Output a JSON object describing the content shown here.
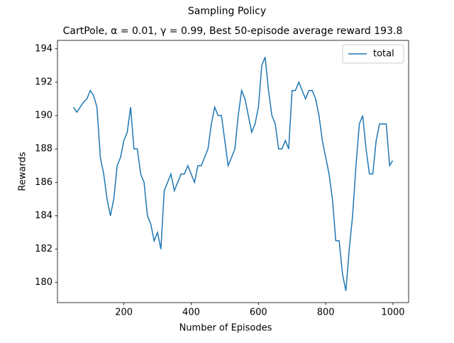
{
  "chart_data": {
    "type": "line",
    "suptitle": "Sampling Policy",
    "title": "CartPole, α = 0.01, γ = 0.99, Best 50-episode average reward 193.8",
    "x_label": "Number of Episodes",
    "y_label": "Rewards",
    "x": [
      50,
      60,
      70,
      80,
      90,
      100,
      110,
      120,
      130,
      140,
      150,
      160,
      170,
      180,
      190,
      200,
      210,
      220,
      230,
      240,
      250,
      260,
      270,
      280,
      290,
      300,
      310,
      320,
      330,
      340,
      350,
      360,
      370,
      380,
      390,
      400,
      410,
      420,
      430,
      440,
      450,
      460,
      470,
      480,
      490,
      500,
      510,
      520,
      530,
      540,
      550,
      560,
      570,
      580,
      590,
      600,
      610,
      620,
      630,
      640,
      650,
      660,
      670,
      680,
      690,
      700,
      710,
      720,
      730,
      740,
      750,
      760,
      770,
      780,
      790,
      800,
      810,
      820,
      830,
      840,
      850,
      860,
      870,
      880,
      890,
      900,
      910,
      920,
      930,
      940,
      950,
      960,
      970,
      980,
      990,
      999
    ],
    "series": [
      {
        "name": "total",
        "color": "#1f77b4",
        "values": [
          190.5,
          190.2,
          190.5,
          190.8,
          191.0,
          191.5,
          191.2,
          190.5,
          187.5,
          186.5,
          185.0,
          184.0,
          185.0,
          187.0,
          187.5,
          188.5,
          189.0,
          190.5,
          188.0,
          188.0,
          186.5,
          186.0,
          184.0,
          183.5,
          182.5,
          183.0,
          182.0,
          185.5,
          186.0,
          186.5,
          185.5,
          186.0,
          186.5,
          186.5,
          187.0,
          186.5,
          186.0,
          187.0,
          187.0,
          187.5,
          188.0,
          189.5,
          190.5,
          190.0,
          190.0,
          188.5,
          187.0,
          187.5,
          188.0,
          190.0,
          191.5,
          191.0,
          190.0,
          189.0,
          189.5,
          190.5,
          193.0,
          193.5,
          191.5,
          190.0,
          189.5,
          188.0,
          188.0,
          188.5,
          188.0,
          191.5,
          191.5,
          192.0,
          191.5,
          191.0,
          191.5,
          191.5,
          191.0,
          190.0,
          188.5,
          187.5,
          186.5,
          185.0,
          182.5,
          182.5,
          180.5,
          179.5,
          182.0,
          184.0,
          187.0,
          189.5,
          190.0,
          188.0,
          186.5,
          186.5,
          188.5,
          189.5,
          189.5,
          189.5,
          187.0,
          187.3
        ]
      }
    ],
    "xlim": [
      2.55,
      1046.45
    ],
    "ylim": [
      178.8,
      194.5
    ],
    "xticks": [
      200,
      400,
      600,
      800,
      1000
    ],
    "yticks": [
      180,
      182,
      184,
      186,
      188,
      190,
      192,
      194
    ],
    "legend": "upper right"
  }
}
